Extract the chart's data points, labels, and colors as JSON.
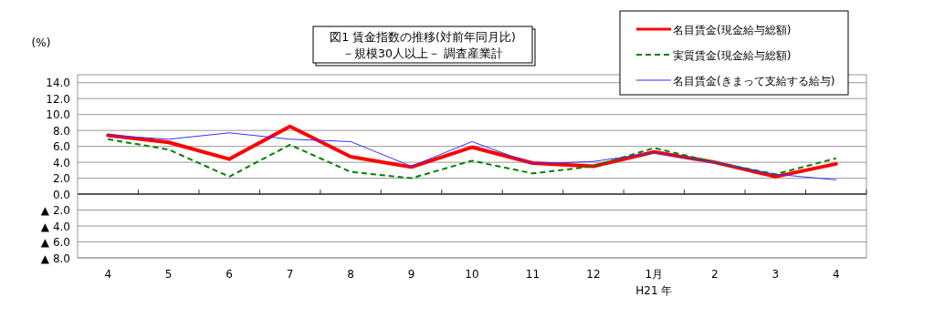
{
  "chart_data": {
    "type": "line",
    "title": "図1  賃金指数の推移(対前年同月比)",
    "subtitle": "－規模30人以上－  調査産業計",
    "ylabel": "(%)",
    "categories": [
      "4",
      "5",
      "6",
      "7",
      "8",
      "9",
      "10",
      "11",
      "12",
      "1月",
      "2",
      "3",
      "4"
    ],
    "series": [
      {
        "name": "名目賃金(現金給与総額)",
        "color": "#ff0000",
        "line_style": "solid",
        "values": [
          7.4,
          6.5,
          4.4,
          8.5,
          4.7,
          3.4,
          5.9,
          3.9,
          3.5,
          5.3,
          4.0,
          2.2,
          3.8
        ]
      },
      {
        "name": "実質賃金(現金給与総額)",
        "color": "#008000",
        "line_style": "dashed",
        "values": [
          6.9,
          5.6,
          2.2,
          6.2,
          2.8,
          2.0,
          4.2,
          2.6,
          3.5,
          5.8,
          4.0,
          2.5,
          4.5
        ]
      },
      {
        "name": "名目賃金(きまって支給する給与)",
        "color": "#3333ff",
        "line_style": "solid",
        "values": [
          7.4,
          6.9,
          7.7,
          6.9,
          6.6,
          3.5,
          6.6,
          3.8,
          4.1,
          5.2,
          4.0,
          2.5,
          1.8
        ]
      }
    ],
    "ylim": [
      -8,
      15
    ],
    "yticks": [
      {
        "value": 14,
        "label": "14.0"
      },
      {
        "value": 12,
        "label": "12.0"
      },
      {
        "value": 10,
        "label": "10.0"
      },
      {
        "value": 8,
        "label": "8.0"
      },
      {
        "value": 6,
        "label": "6.0"
      },
      {
        "value": 4,
        "label": "4.0"
      },
      {
        "value": 2,
        "label": "2.0"
      },
      {
        "value": 0,
        "label": "0.0"
      },
      {
        "value": -2,
        "label": "▲ 2.0"
      },
      {
        "value": -4,
        "label": "▲ 4.0"
      },
      {
        "value": -6,
        "label": "▲ 6.0"
      },
      {
        "value": -8,
        "label": "▲ 8.0"
      }
    ],
    "grid": "y",
    "legend": "top right",
    "marker": "none",
    "annotations": [
      "H21 年"
    ]
  }
}
